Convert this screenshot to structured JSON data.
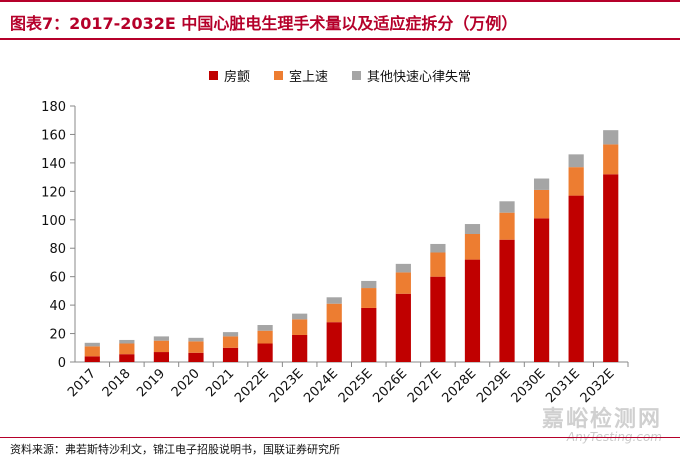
{
  "title": "图表7：2017-2032E 中国心脏电生理手术量以及适应症拆分（万例）",
  "source": "资料来源：弗若斯特沙利文，锦江电子招股说明书，国联证券研究所",
  "watermark": {
    "main": "嘉峪检测网",
    "sub": "AnyTesting.com"
  },
  "colors": {
    "accent": "#b5002a",
    "series": [
      "#c00000",
      "#ed7d31",
      "#a5a5a5"
    ]
  },
  "chart_data": {
    "type": "bar",
    "stacked": true,
    "categories": [
      "2017",
      "2018",
      "2019",
      "2020",
      "2021",
      "2022E",
      "2023E",
      "2024E",
      "2025E",
      "2026E",
      "2027E",
      "2028E",
      "2029E",
      "2030E",
      "2031E",
      "2032E"
    ],
    "series": [
      {
        "name": "房颤",
        "values": [
          4,
          5.5,
          7,
          6.5,
          10,
          13,
          19,
          28,
          38,
          48,
          60,
          72,
          86,
          101,
          117,
          132
        ]
      },
      {
        "name": "室上速",
        "values": [
          7,
          7.5,
          8,
          8,
          8,
          9,
          11,
          13,
          14,
          15,
          17,
          18,
          19,
          20,
          20,
          21
        ]
      },
      {
        "name": "其他快速心律失常",
        "values": [
          2.5,
          2.5,
          3,
          2.5,
          3,
          4,
          4,
          4.5,
          5,
          6,
          6,
          7,
          8,
          8,
          9,
          10
        ]
      }
    ],
    "ylim": [
      0,
      180
    ],
    "yticks": [
      "0",
      "20",
      "40",
      "60",
      "80",
      "100",
      "120",
      "140",
      "160",
      "180"
    ],
    "legend_position": "top-center",
    "grid": false
  }
}
